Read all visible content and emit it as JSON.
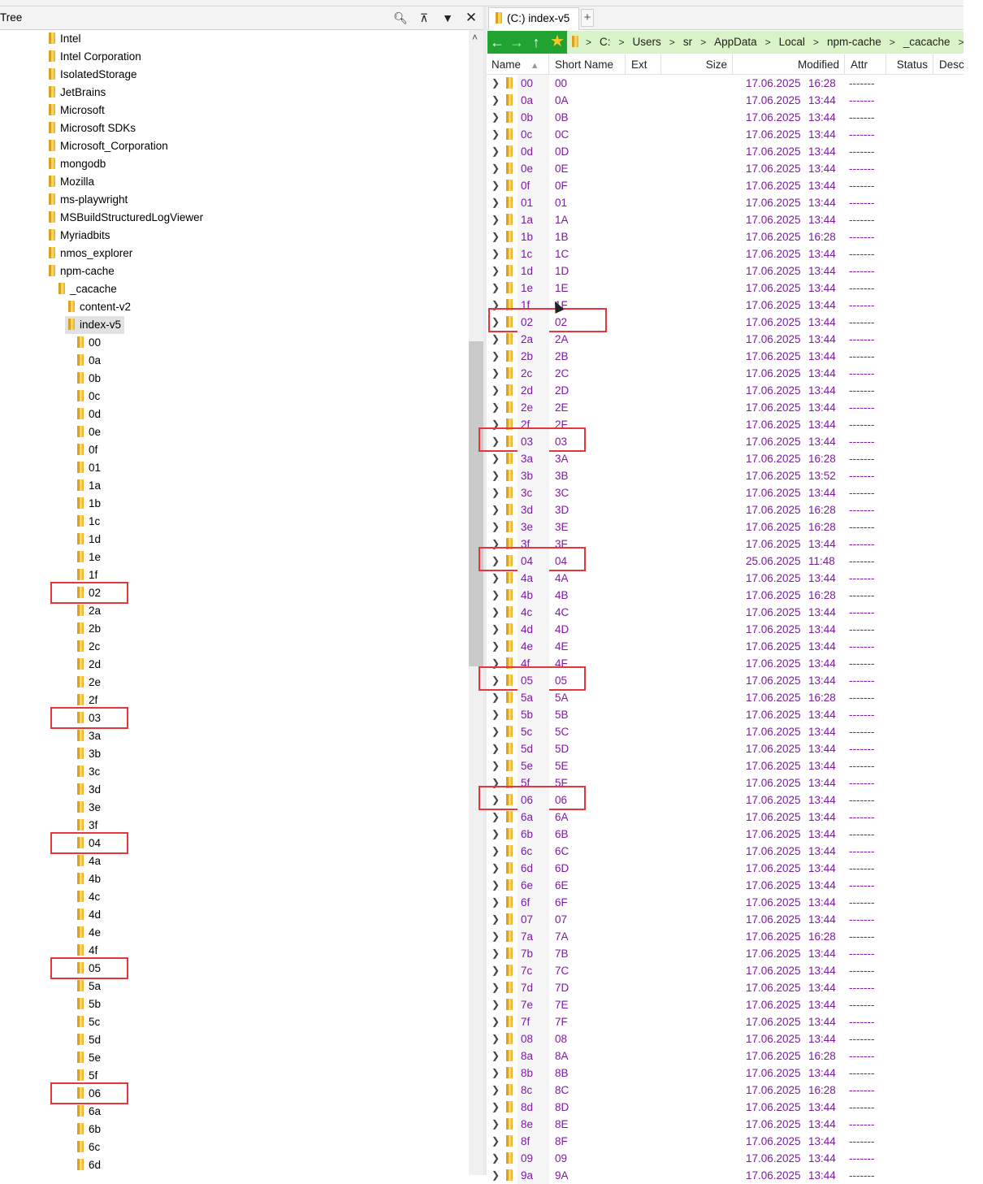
{
  "tree_panel": {
    "title": "Tree",
    "scroll_up": "˄",
    "items": [
      {
        "label": "Intel",
        "level": 0
      },
      {
        "label": "Intel Corporation",
        "level": 0
      },
      {
        "label": "IsolatedStorage",
        "level": 0
      },
      {
        "label": "JetBrains",
        "level": 0
      },
      {
        "label": "Microsoft",
        "level": 0
      },
      {
        "label": "Microsoft SDKs",
        "level": 0
      },
      {
        "label": "Microsoft_Corporation",
        "level": 0
      },
      {
        "label": "mongodb",
        "level": 0
      },
      {
        "label": "Mozilla",
        "level": 0
      },
      {
        "label": "ms-playwright",
        "level": 0
      },
      {
        "label": "MSBuildStructuredLogViewer",
        "level": 0
      },
      {
        "label": "Myriadbits",
        "level": 0
      },
      {
        "label": "nmos_explorer",
        "level": 0
      },
      {
        "label": "npm-cache",
        "level": 0
      },
      {
        "label": "_cacache",
        "level": 1
      },
      {
        "label": "content-v2",
        "level": 2
      },
      {
        "label": "index-v5",
        "level": 2,
        "selected": true
      },
      {
        "label": "00",
        "level": 3
      },
      {
        "label": "0a",
        "level": 3
      },
      {
        "label": "0b",
        "level": 3
      },
      {
        "label": "0c",
        "level": 3
      },
      {
        "label": "0d",
        "level": 3
      },
      {
        "label": "0e",
        "level": 3
      },
      {
        "label": "0f",
        "level": 3
      },
      {
        "label": "01",
        "level": 3
      },
      {
        "label": "1a",
        "level": 3
      },
      {
        "label": "1b",
        "level": 3
      },
      {
        "label": "1c",
        "level": 3
      },
      {
        "label": "1d",
        "level": 3
      },
      {
        "label": "1e",
        "level": 3
      },
      {
        "label": "1f",
        "level": 3
      },
      {
        "label": "02",
        "level": 3
      },
      {
        "label": "2a",
        "level": 3
      },
      {
        "label": "2b",
        "level": 3
      },
      {
        "label": "2c",
        "level": 3
      },
      {
        "label": "2d",
        "level": 3
      },
      {
        "label": "2e",
        "level": 3
      },
      {
        "label": "2f",
        "level": 3
      },
      {
        "label": "03",
        "level": 3
      },
      {
        "label": "3a",
        "level": 3
      },
      {
        "label": "3b",
        "level": 3
      },
      {
        "label": "3c",
        "level": 3
      },
      {
        "label": "3d",
        "level": 3
      },
      {
        "label": "3e",
        "level": 3
      },
      {
        "label": "3f",
        "level": 3
      },
      {
        "label": "04",
        "level": 3
      },
      {
        "label": "4a",
        "level": 3
      },
      {
        "label": "4b",
        "level": 3
      },
      {
        "label": "4c",
        "level": 3
      },
      {
        "label": "4d",
        "level": 3
      },
      {
        "label": "4e",
        "level": 3
      },
      {
        "label": "4f",
        "level": 3
      },
      {
        "label": "05",
        "level": 3
      },
      {
        "label": "5a",
        "level": 3
      },
      {
        "label": "5b",
        "level": 3
      },
      {
        "label": "5c",
        "level": 3
      },
      {
        "label": "5d",
        "level": 3
      },
      {
        "label": "5e",
        "level": 3
      },
      {
        "label": "5f",
        "level": 3
      },
      {
        "label": "06",
        "level": 3
      },
      {
        "label": "6a",
        "level": 3
      },
      {
        "label": "6b",
        "level": 3
      },
      {
        "label": "6c",
        "level": 3
      },
      {
        "label": "6d",
        "level": 3
      }
    ],
    "highlighted": [
      "02",
      "03",
      "04",
      "05",
      "06"
    ]
  },
  "tab": {
    "label": "(C:) index-v5",
    "plus": "+"
  },
  "nav": {
    "icons": [
      "arrow-left-icon",
      "arrow-right-icon",
      "arrow-up-icon",
      "star-icon"
    ],
    "breadcrumbs": [
      "C:",
      "Users",
      "sr",
      "AppData",
      "Local",
      "npm-cache",
      "_cacache"
    ]
  },
  "columns": {
    "name": "Name",
    "short": "Short Name",
    "ext": "Ext",
    "size": "Size",
    "modified": "Modified",
    "attr": "Attr",
    "status": "Status",
    "desc": "Desc"
  },
  "files": [
    [
      "00",
      "00",
      "17.06.2025",
      "16:28"
    ],
    [
      "0a",
      "0A",
      "17.06.2025",
      "13:44"
    ],
    [
      "0b",
      "0B",
      "17.06.2025",
      "13:44"
    ],
    [
      "0c",
      "0C",
      "17.06.2025",
      "13:44"
    ],
    [
      "0d",
      "0D",
      "17.06.2025",
      "13:44"
    ],
    [
      "0e",
      "0E",
      "17.06.2025",
      "13:44"
    ],
    [
      "0f",
      "0F",
      "17.06.2025",
      "13:44"
    ],
    [
      "01",
      "01",
      "17.06.2025",
      "13:44"
    ],
    [
      "1a",
      "1A",
      "17.06.2025",
      "13:44"
    ],
    [
      "1b",
      "1B",
      "17.06.2025",
      "16:28"
    ],
    [
      "1c",
      "1C",
      "17.06.2025",
      "13:44"
    ],
    [
      "1d",
      "1D",
      "17.06.2025",
      "13:44"
    ],
    [
      "1e",
      "1E",
      "17.06.2025",
      "13:44"
    ],
    [
      "1f",
      "1F",
      "17.06.2025",
      "13:44"
    ],
    [
      "02",
      "02",
      "17.06.2025",
      "13:44"
    ],
    [
      "2a",
      "2A",
      "17.06.2025",
      "13:44"
    ],
    [
      "2b",
      "2B",
      "17.06.2025",
      "13:44"
    ],
    [
      "2c",
      "2C",
      "17.06.2025",
      "13:44"
    ],
    [
      "2d",
      "2D",
      "17.06.2025",
      "13:44"
    ],
    [
      "2e",
      "2E",
      "17.06.2025",
      "13:44"
    ],
    [
      "2f",
      "2F",
      "17.06.2025",
      "13:44"
    ],
    [
      "03",
      "03",
      "17.06.2025",
      "13:44"
    ],
    [
      "3a",
      "3A",
      "17.06.2025",
      "16:28"
    ],
    [
      "3b",
      "3B",
      "17.06.2025",
      "13:52"
    ],
    [
      "3c",
      "3C",
      "17.06.2025",
      "13:44"
    ],
    [
      "3d",
      "3D",
      "17.06.2025",
      "16:28"
    ],
    [
      "3e",
      "3E",
      "17.06.2025",
      "16:28"
    ],
    [
      "3f",
      "3F",
      "17.06.2025",
      "13:44"
    ],
    [
      "04",
      "04",
      "25.06.2025",
      "11:48"
    ],
    [
      "4a",
      "4A",
      "17.06.2025",
      "13:44"
    ],
    [
      "4b",
      "4B",
      "17.06.2025",
      "16:28"
    ],
    [
      "4c",
      "4C",
      "17.06.2025",
      "13:44"
    ],
    [
      "4d",
      "4D",
      "17.06.2025",
      "13:44"
    ],
    [
      "4e",
      "4E",
      "17.06.2025",
      "13:44"
    ],
    [
      "4f",
      "4F",
      "17.06.2025",
      "13:44"
    ],
    [
      "05",
      "05",
      "17.06.2025",
      "13:44"
    ],
    [
      "5a",
      "5A",
      "17.06.2025",
      "16:28"
    ],
    [
      "5b",
      "5B",
      "17.06.2025",
      "13:44"
    ],
    [
      "5c",
      "5C",
      "17.06.2025",
      "13:44"
    ],
    [
      "5d",
      "5D",
      "17.06.2025",
      "13:44"
    ],
    [
      "5e",
      "5E",
      "17.06.2025",
      "13:44"
    ],
    [
      "5f",
      "5F",
      "17.06.2025",
      "13:44"
    ],
    [
      "06",
      "06",
      "17.06.2025",
      "13:44"
    ],
    [
      "6a",
      "6A",
      "17.06.2025",
      "13:44"
    ],
    [
      "6b",
      "6B",
      "17.06.2025",
      "13:44"
    ],
    [
      "6c",
      "6C",
      "17.06.2025",
      "13:44"
    ],
    [
      "6d",
      "6D",
      "17.06.2025",
      "13:44"
    ],
    [
      "6e",
      "6E",
      "17.06.2025",
      "13:44"
    ],
    [
      "6f",
      "6F",
      "17.06.2025",
      "13:44"
    ],
    [
      "07",
      "07",
      "17.06.2025",
      "13:44"
    ],
    [
      "7a",
      "7A",
      "17.06.2025",
      "16:28"
    ],
    [
      "7b",
      "7B",
      "17.06.2025",
      "13:44"
    ],
    [
      "7c",
      "7C",
      "17.06.2025",
      "13:44"
    ],
    [
      "7d",
      "7D",
      "17.06.2025",
      "13:44"
    ],
    [
      "7e",
      "7E",
      "17.06.2025",
      "13:44"
    ],
    [
      "7f",
      "7F",
      "17.06.2025",
      "13:44"
    ],
    [
      "08",
      "08",
      "17.06.2025",
      "13:44"
    ],
    [
      "8a",
      "8A",
      "17.06.2025",
      "16:28"
    ],
    [
      "8b",
      "8B",
      "17.06.2025",
      "13:44"
    ],
    [
      "8c",
      "8C",
      "17.06.2025",
      "16:28"
    ],
    [
      "8d",
      "8D",
      "17.06.2025",
      "13:44"
    ],
    [
      "8e",
      "8E",
      "17.06.2025",
      "13:44"
    ],
    [
      "8f",
      "8F",
      "17.06.2025",
      "13:44"
    ],
    [
      "09",
      "09",
      "17.06.2025",
      "13:44"
    ],
    [
      "9a",
      "9A",
      "17.06.2025",
      "13:44"
    ]
  ],
  "attr_value": "-------",
  "colors": {
    "accent_green": "#21a331",
    "crumb_bg": "#d9f2c7",
    "file_text": "#7c1b9e",
    "highlight": "#e5373b"
  }
}
